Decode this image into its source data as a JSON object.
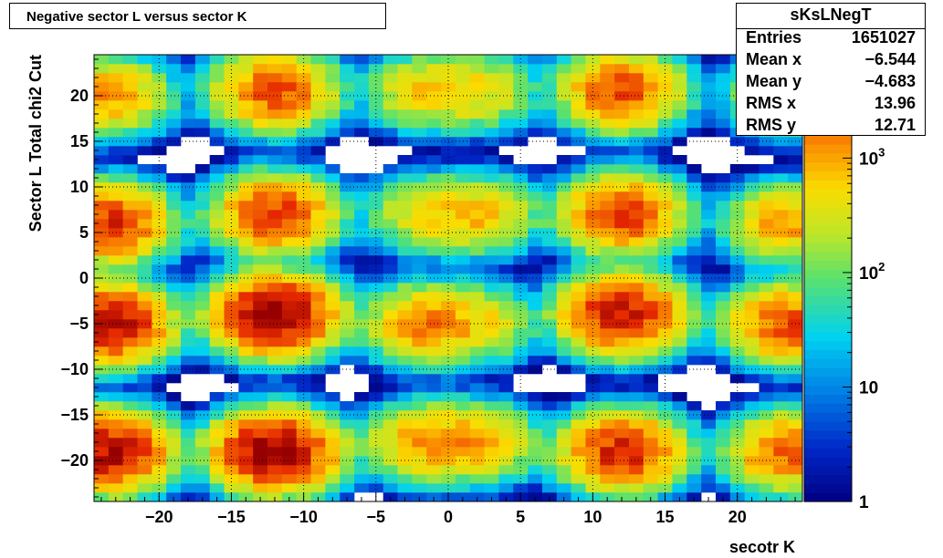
{
  "title": "Negative sector L versus sector K",
  "stats": {
    "name": "sKsLNegT",
    "rows": [
      {
        "label": "Entries",
        "value": "1651027"
      },
      {
        "label": "Mean x",
        "value": "−6.544"
      },
      {
        "label": "Mean y",
        "value": "−4.683"
      },
      {
        "label": "RMS x",
        "value": "13.96"
      },
      {
        "label": "RMS y",
        "value": "12.71"
      }
    ]
  },
  "chart_data": {
    "type": "heatmap",
    "title": "Negative sector L versus sector K",
    "xlabel": "secotr K",
    "ylabel": "Sector L  Total chi2 Cut",
    "xlim": [
      -24.5,
      24.5
    ],
    "ylim": [
      -24.5,
      24.5
    ],
    "x_ticks": [
      -20,
      -15,
      -10,
      -5,
      0,
      5,
      10,
      15,
      20
    ],
    "x_tick_labels": [
      "−20",
      "−15",
      "−10",
      "−5",
      "0",
      "5",
      "10",
      "15",
      "20"
    ],
    "y_ticks": [
      -20,
      -15,
      -10,
      -5,
      0,
      5,
      10,
      15,
      20
    ],
    "y_tick_labels": [
      "−20",
      "−15",
      "−10",
      "−5",
      "0",
      "5",
      "10",
      "15",
      "20"
    ],
    "color_scale": "log",
    "z_range": [
      1,
      8000
    ],
    "colorbar_ticks": [
      {
        "value": 1,
        "label": "1"
      },
      {
        "value": 10,
        "label": "10"
      },
      {
        "value": 100,
        "label": "10",
        "sup": "2"
      },
      {
        "value": 1000,
        "label": "10",
        "sup": "3"
      }
    ],
    "grid": true,
    "bin_width": 1,
    "clusters": [
      {
        "cx": -12,
        "cy": 7,
        "peak": 3000
      },
      {
        "cx": 12,
        "cy": 7,
        "peak": 3000
      },
      {
        "cx": -1.5,
        "cy": 20.5,
        "peak": 600
      },
      {
        "cx": 2,
        "cy": 20.5,
        "peak": 500
      },
      {
        "cx": -12,
        "cy": -4,
        "peak": 8000
      },
      {
        "cx": 12,
        "cy": -4,
        "peak": 5000
      },
      {
        "cx": -1.5,
        "cy": 7,
        "peak": 500
      },
      {
        "cx": 2,
        "cy": 7,
        "peak": 800
      },
      {
        "cx": -1.5,
        "cy": -5,
        "peak": 1500
      },
      {
        "cx": 2,
        "cy": -5,
        "peak": 500
      },
      {
        "cx": -12,
        "cy": 20.5,
        "peak": 2500
      },
      {
        "cx": 12,
        "cy": 20.5,
        "peak": 2500
      },
      {
        "cx": -12,
        "cy": -19,
        "peak": 8000
      },
      {
        "cx": 12,
        "cy": -19,
        "peak": 4000
      },
      {
        "cx": -1.5,
        "cy": -18,
        "peak": 1200
      },
      {
        "cx": 2,
        "cy": -18,
        "peak": 1000
      },
      {
        "cx": -23.5,
        "cy": 6,
        "peak": 3500
      },
      {
        "cx": 23.5,
        "cy": 6,
        "peak": 1200
      },
      {
        "cx": -23.5,
        "cy": -5,
        "peak": 6000
      },
      {
        "cx": 23.5,
        "cy": -5,
        "peak": 2500
      },
      {
        "cx": -23.5,
        "cy": -19,
        "peak": 6000
      },
      {
        "cx": 23.5,
        "cy": -19,
        "peak": 2000
      },
      {
        "cx": -23.5,
        "cy": 20,
        "peak": 1200
      },
      {
        "cx": 23.5,
        "cy": 20,
        "peak": 600
      }
    ]
  }
}
